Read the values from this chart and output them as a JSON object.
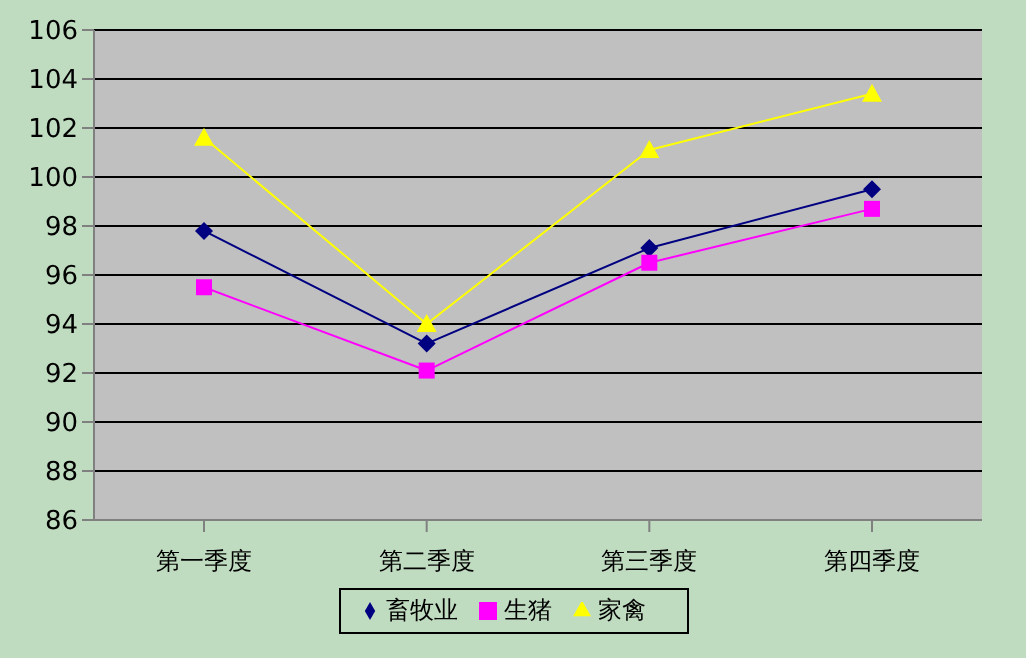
{
  "chart_data": {
    "type": "line",
    "categories": [
      "第一季度",
      "第二季度",
      "第三季度",
      "第四季度"
    ],
    "series": [
      {
        "name": "畜牧业",
        "color": "#000080",
        "marker": "diamond",
        "values": [
          97.8,
          93.2,
          97.1,
          99.5
        ]
      },
      {
        "name": "生猪",
        "color": "#ff00ff",
        "marker": "square",
        "values": [
          95.5,
          92.1,
          96.5,
          98.7
        ]
      },
      {
        "name": "家禽",
        "color": "#ffff00",
        "marker": "triangle",
        "values": [
          101.6,
          94.0,
          101.1,
          103.4
        ]
      }
    ],
    "ylim": [
      86,
      106
    ],
    "yticks": [
      86,
      88,
      90,
      92,
      94,
      96,
      98,
      100,
      102,
      104,
      106
    ],
    "grid": "y",
    "legend": "bottom"
  }
}
